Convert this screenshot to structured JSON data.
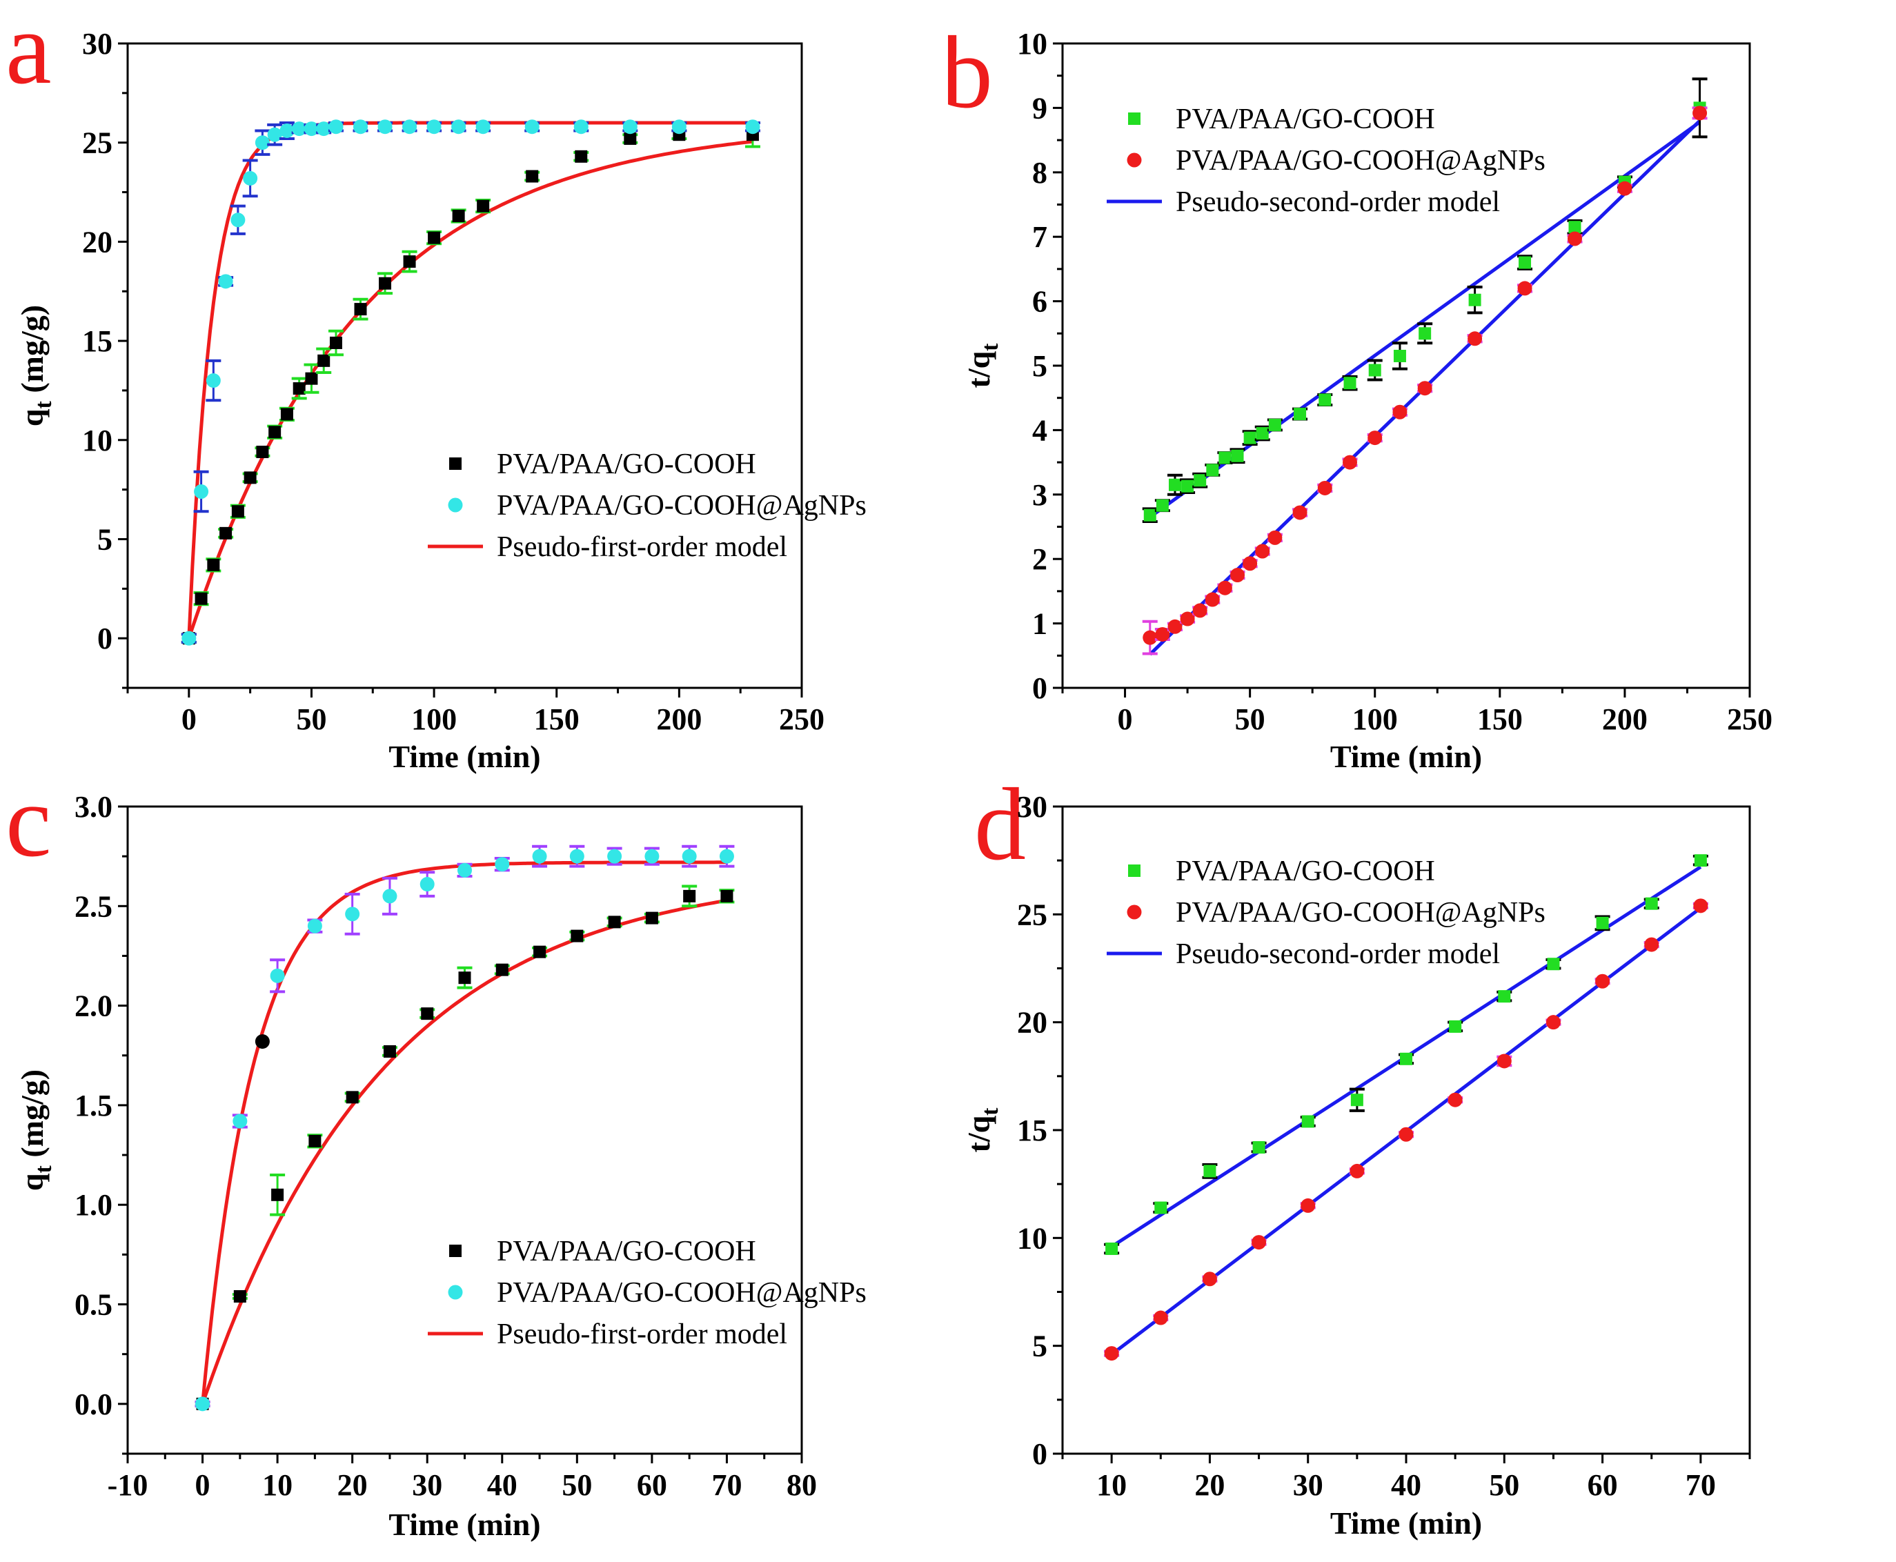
{
  "chart_data": [
    {
      "panel": "a",
      "type": "scatter",
      "xlabel": "Time (min)",
      "ylabel": "qt (mg/g)",
      "ylabel_main": "q",
      "ylabel_sub": "t",
      "ylabel_unit": " (mg/g)",
      "xlim": [
        -25,
        250
      ],
      "ylim": [
        -2.5,
        30
      ],
      "xticks": [
        0,
        50,
        100,
        150,
        200,
        250
      ],
      "yticks": [
        0,
        5,
        10,
        15,
        20,
        25,
        30
      ],
      "legend": {
        "position": "center-right",
        "entries": [
          "PVA/PAA/GO-COOH",
          "PVA/PAA/GO-COOH@AgNPs",
          "Pseudo-first-order model"
        ]
      },
      "series": [
        {
          "name": "PVA/PAA/GO-COOH",
          "marker": "square",
          "color": "#000000",
          "error_color": "#22dd22",
          "x": [
            0,
            5,
            10,
            15,
            20,
            25,
            30,
            35,
            40,
            45,
            50,
            55,
            60,
            70,
            80,
            90,
            100,
            110,
            120,
            140,
            160,
            180,
            200,
            230
          ],
          "y": [
            0,
            2.0,
            3.7,
            5.3,
            6.4,
            8.1,
            9.4,
            10.4,
            11.3,
            12.6,
            13.1,
            14.0,
            14.9,
            16.6,
            17.9,
            19.0,
            20.2,
            21.3,
            21.8,
            23.3,
            24.3,
            25.2,
            25.4,
            25.4
          ],
          "err": [
            0.2,
            0.3,
            0.3,
            0.2,
            0.3,
            0.2,
            0.2,
            0.3,
            0.3,
            0.5,
            0.7,
            0.6,
            0.6,
            0.5,
            0.5,
            0.5,
            0.3,
            0.3,
            0.3,
            0.2,
            0.2,
            0.2,
            0.2,
            0.6
          ]
        },
        {
          "name": "PVA/PAA/GO-COOH@AgNPs",
          "marker": "circle",
          "color": "#33e6e6",
          "error_color": "#2233cc",
          "x": [
            0,
            5,
            10,
            15,
            20,
            25,
            30,
            35,
            40,
            45,
            50,
            55,
            60,
            70,
            80,
            90,
            100,
            110,
            120,
            140,
            160,
            180,
            200,
            230
          ],
          "y": [
            0,
            7.4,
            13.0,
            18.0,
            21.1,
            23.2,
            25.0,
            25.4,
            25.6,
            25.7,
            25.7,
            25.7,
            25.8,
            25.8,
            25.8,
            25.8,
            25.8,
            25.8,
            25.8,
            25.8,
            25.8,
            25.8,
            25.8,
            25.8
          ],
          "err": [
            0.2,
            1.0,
            1.0,
            0.2,
            0.7,
            0.9,
            0.6,
            0.5,
            0.4,
            0.2,
            0.2,
            0.2,
            0.2,
            0.2,
            0.2,
            0.2,
            0.2,
            0.2,
            0.2,
            0.2,
            0.2,
            0.2,
            0.2,
            0.2
          ]
        }
      ],
      "fits": [
        {
          "name": "Pseudo-first-order model",
          "model": "first-order",
          "color": "#ee1c1c",
          "qe": 26.0,
          "k": 0.0144,
          "x_range": [
            0,
            230
          ]
        },
        {
          "name": "Pseudo-first-order model",
          "model": "first-order",
          "color": "#ee1c1c",
          "qe": 26.0,
          "k": 0.105,
          "x_range": [
            0,
            230
          ]
        }
      ]
    },
    {
      "panel": "b",
      "type": "scatter",
      "xlabel": "Time (min)",
      "ylabel": "t/qt",
      "ylabel_main": "t/q",
      "ylabel_sub": "t",
      "ylabel_unit": "",
      "xlim": [
        -25,
        250
      ],
      "ylim": [
        0,
        10
      ],
      "xticks": [
        0,
        50,
        100,
        150,
        200,
        250
      ],
      "yticks": [
        0,
        1,
        2,
        3,
        4,
        5,
        6,
        7,
        8,
        9,
        10
      ],
      "legend": {
        "position": "top-left",
        "entries": [
          "PVA/PAA/GO-COOH",
          "PVA/PAA/GO-COOH@AgNPs",
          "Pseudo-second-order model"
        ]
      },
      "series": [
        {
          "name": "PVA/PAA/GO-COOH",
          "marker": "square",
          "color": "#22dd22",
          "error_color": "#000000",
          "x": [
            10,
            15,
            20,
            25,
            30,
            35,
            40,
            45,
            50,
            55,
            60,
            70,
            80,
            90,
            100,
            110,
            120,
            140,
            160,
            180,
            200,
            230
          ],
          "y": [
            2.68,
            2.83,
            3.15,
            3.13,
            3.22,
            3.38,
            3.57,
            3.6,
            3.88,
            3.95,
            4.08,
            4.25,
            4.47,
            4.73,
            4.93,
            5.15,
            5.5,
            6.02,
            6.6,
            7.15,
            7.85,
            9.0
          ],
          "err": [
            0.1,
            0.08,
            0.15,
            0.1,
            0.1,
            0.08,
            0.08,
            0.1,
            0.1,
            0.1,
            0.08,
            0.08,
            0.08,
            0.1,
            0.15,
            0.2,
            0.15,
            0.2,
            0.1,
            0.1,
            0.08,
            0.45
          ]
        },
        {
          "name": "PVA/PAA/GO-COOH@AgNPs",
          "marker": "circle",
          "color": "#ee1c1c",
          "error_color": "#e040e0",
          "x": [
            10,
            15,
            20,
            25,
            30,
            35,
            40,
            45,
            50,
            55,
            60,
            70,
            80,
            90,
            100,
            110,
            120,
            140,
            160,
            180,
            200,
            230
          ],
          "y": [
            0.78,
            0.83,
            0.95,
            1.07,
            1.2,
            1.37,
            1.55,
            1.75,
            1.93,
            2.12,
            2.33,
            2.72,
            3.1,
            3.5,
            3.88,
            4.28,
            4.65,
            5.42,
            6.2,
            6.97,
            7.75,
            8.92
          ],
          "err": [
            0.25,
            0.08,
            0.05,
            0.05,
            0.05,
            0.05,
            0.05,
            0.05,
            0.05,
            0.05,
            0.05,
            0.05,
            0.05,
            0.05,
            0.05,
            0.05,
            0.05,
            0.05,
            0.05,
            0.05,
            0.05,
            0.08
          ]
        }
      ],
      "fits": [
        {
          "name": "Pseudo-second-order model",
          "model": "line",
          "color": "#1a1aee",
          "points": [
            [
              10,
              2.65
            ],
            [
              230,
              8.78
            ]
          ]
        },
        {
          "name": "Pseudo-second-order model",
          "model": "line",
          "color": "#1a1aee",
          "points": [
            [
              10,
              0.52
            ],
            [
              230,
              8.8
            ]
          ]
        }
      ]
    },
    {
      "panel": "c",
      "type": "scatter",
      "xlabel": "Time (min)",
      "ylabel": "qt (mg/g)",
      "ylabel_main": "q",
      "ylabel_sub": "t",
      "ylabel_unit": " (mg/g)",
      "xlim": [
        -10,
        80
      ],
      "ylim": [
        -0.25,
        3.0
      ],
      "xticks": [
        -10,
        0,
        10,
        20,
        30,
        40,
        50,
        60,
        70,
        80
      ],
      "yticks": [
        0.0,
        0.5,
        1.0,
        1.5,
        2.0,
        2.5,
        3.0
      ],
      "ytick_labels": [
        "0.0",
        "0.5",
        "1.0",
        "1.5",
        "2.0",
        "2.5",
        "3.0"
      ],
      "legend": {
        "position": "bottom-right",
        "entries": [
          "PVA/PAA/GO-COOH",
          "PVA/PAA/GO-COOH@AgNPs",
          "Pseudo-first-order model"
        ]
      },
      "series": [
        {
          "name": "PVA/PAA/GO-COOH",
          "marker": "square",
          "color": "#000000",
          "error_color": "#22dd22",
          "x": [
            0,
            5,
            10,
            15,
            20,
            25,
            30,
            35,
            40,
            45,
            50,
            55,
            60,
            65,
            70
          ],
          "y": [
            0,
            0.54,
            1.05,
            1.32,
            1.54,
            1.77,
            1.96,
            2.14,
            2.18,
            2.27,
            2.35,
            2.42,
            2.44,
            2.55,
            2.55
          ],
          "err": [
            0.01,
            0.01,
            0.1,
            0.03,
            0.02,
            0.02,
            0.02,
            0.05,
            0.02,
            0.02,
            0.02,
            0.02,
            0.02,
            0.05,
            0.03
          ]
        },
        {
          "name": "PVA/PAA/GO-COOH@AgNPs",
          "marker": "circle",
          "color": "#33e6e6",
          "error_color": "#a040ff",
          "x": [
            0,
            5,
            10,
            15,
            20,
            25,
            30,
            35,
            40,
            45,
            50,
            55,
            60,
            65,
            70
          ],
          "y": [
            0,
            1.42,
            2.15,
            2.4,
            2.46,
            2.55,
            2.61,
            2.68,
            2.71,
            2.75,
            2.75,
            2.75,
            2.75,
            2.75,
            2.75
          ],
          "err": [
            0.01,
            0.03,
            0.08,
            0.03,
            0.1,
            0.09,
            0.06,
            0.03,
            0.03,
            0.05,
            0.05,
            0.04,
            0.04,
            0.05,
            0.05
          ]
        },
        {
          "name": "outlier",
          "marker": "circle",
          "color": "#000000",
          "x": [
            8
          ],
          "y": [
            1.82
          ],
          "err": [
            0
          ]
        }
      ],
      "fits": [
        {
          "name": "Pseudo-first-order model",
          "model": "first-order",
          "color": "#ee1c1c",
          "qe": 2.72,
          "k": 0.145,
          "x_range": [
            0,
            70
          ]
        },
        {
          "name": "Pseudo-first-order model",
          "model": "first-order",
          "color": "#ee1c1c",
          "qe": 2.68,
          "k": 0.041,
          "x_range": [
            0,
            70
          ]
        }
      ]
    },
    {
      "panel": "d",
      "type": "scatter",
      "xlabel": "Time (min)",
      "ylabel": "t/qt",
      "ylabel_main": "t/q",
      "ylabel_sub": "t",
      "ylabel_unit": "",
      "xlim": [
        5,
        75
      ],
      "ylim": [
        0,
        30
      ],
      "xticks": [
        10,
        20,
        30,
        40,
        50,
        60,
        70
      ],
      "yticks": [
        0,
        5,
        10,
        15,
        20,
        25,
        30
      ],
      "legend": {
        "position": "top-left",
        "entries": [
          "PVA/PAA/GO-COOH",
          "PVA/PAA/GO-COOH@AgNPs",
          "Pseudo-second-order model"
        ]
      },
      "series": [
        {
          "name": "PVA/PAA/GO-COOH",
          "marker": "square",
          "color": "#22dd22",
          "error_color": "#000000",
          "x": [
            10,
            15,
            20,
            25,
            30,
            35,
            40,
            45,
            50,
            55,
            60,
            65,
            70
          ],
          "y": [
            9.5,
            11.4,
            13.1,
            14.2,
            15.4,
            16.4,
            18.3,
            19.8,
            21.2,
            22.7,
            24.6,
            25.5,
            27.5
          ],
          "err": [
            0.2,
            0.2,
            0.3,
            0.2,
            0.2,
            0.5,
            0.2,
            0.2,
            0.2,
            0.2,
            0.3,
            0.2,
            0.2
          ]
        },
        {
          "name": "PVA/PAA/GO-COOH@AgNPs",
          "marker": "circle",
          "color": "#ee1c1c",
          "error_color": "#e040e0",
          "x": [
            10,
            15,
            20,
            25,
            30,
            35,
            40,
            45,
            50,
            55,
            60,
            65,
            70
          ],
          "y": [
            4.65,
            6.3,
            8.1,
            9.8,
            11.5,
            13.1,
            14.8,
            16.4,
            18.2,
            20.0,
            21.9,
            23.6,
            25.4
          ],
          "err": [
            0.1,
            0.1,
            0.1,
            0.1,
            0.1,
            0.1,
            0.1,
            0.1,
            0.2,
            0.1,
            0.1,
            0.1,
            0.1
          ]
        }
      ],
      "fits": [
        {
          "name": "Pseudo-second-order model",
          "model": "line",
          "color": "#1a1aee",
          "points": [
            [
              10,
              9.6
            ],
            [
              70,
              27.2
            ]
          ]
        },
        {
          "name": "Pseudo-second-order model",
          "model": "line",
          "color": "#1a1aee",
          "points": [
            [
              10,
              4.6
            ],
            [
              70,
              25.3
            ]
          ]
        }
      ]
    }
  ]
}
